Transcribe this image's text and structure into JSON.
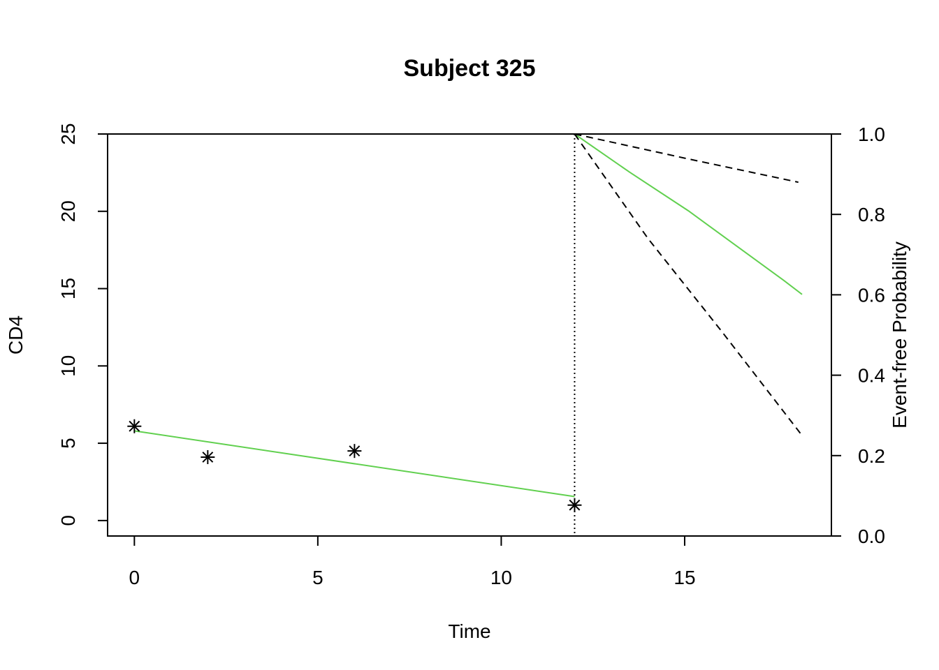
{
  "chart_data": {
    "type": "line",
    "title": "Subject 325",
    "xlabel": "Time",
    "ylabel": "CD4",
    "y2label": "Event-free Probability",
    "xlim": [
      -0.73,
      19
    ],
    "ylim": [
      -1,
      25
    ],
    "y2lim": [
      0,
      1
    ],
    "x_ticks": [
      0,
      5,
      10,
      15
    ],
    "y_ticks": [
      0,
      5,
      10,
      15,
      20,
      25
    ],
    "y2_ticks": [
      "0.0",
      "0.2",
      "0.4",
      "0.6",
      "0.8",
      "1.0"
    ],
    "grid": false,
    "observed": {
      "marker": "asterisk",
      "x": [
        0,
        2,
        6,
        12
      ],
      "y": [
        6.1,
        4.1,
        4.5,
        1.0
      ]
    },
    "fitted_trajectory": {
      "color": "#61D04F",
      "x": [
        0,
        12
      ],
      "y": [
        5.8,
        1.55
      ]
    },
    "last_time": 12,
    "survival": {
      "color": "#61D04F",
      "x": [
        12,
        13.5,
        15.1,
        17.7,
        18.2
      ],
      "y": [
        1.0,
        0.905,
        0.809,
        0.636,
        0.601
      ]
    },
    "survival_upper": {
      "style": "dashed",
      "x": [
        12,
        15,
        18.1
      ],
      "y": [
        1.0,
        0.94,
        0.88
      ]
    },
    "survival_lower": {
      "style": "dashed",
      "x": [
        12,
        14,
        16,
        18.2
      ],
      "y": [
        1.0,
        0.74,
        0.51,
        0.25
      ]
    }
  }
}
